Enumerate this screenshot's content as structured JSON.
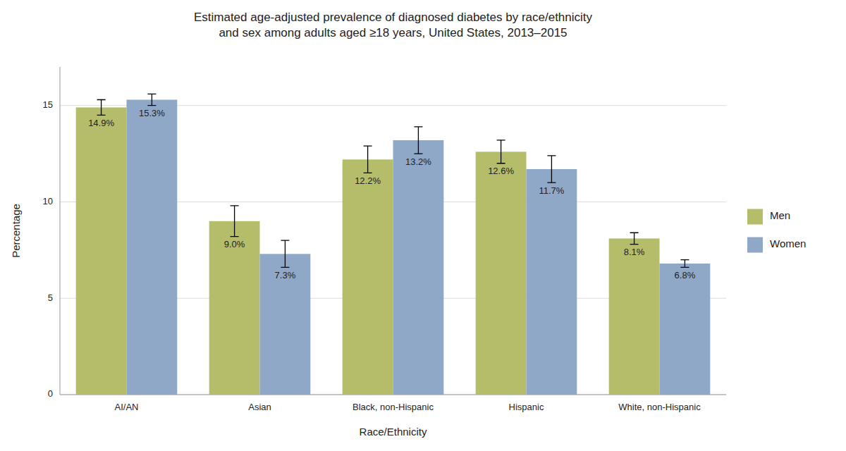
{
  "chart_data": {
    "type": "bar",
    "title": "Estimated age-adjusted prevalence of diagnosed diabetes by race/ethnicity\nand sex among adults aged ≥18 years, United States, 2013–2015",
    "xlabel": "Race/Ethnicity",
    "ylabel": "Percentage",
    "categories": [
      "AI/AN",
      "Asian",
      "Black, non-Hispanic",
      "Hispanic",
      "White, non-Hispanic"
    ],
    "series": [
      {
        "name": "Men",
        "color": "#b5bd6b",
        "values": [
          14.9,
          9.0,
          12.2,
          12.6,
          8.1
        ],
        "value_labels": [
          "14.9%",
          "9.0%",
          "12.2%",
          "12.6%",
          "8.1%"
        ],
        "errors_low": [
          0.4,
          0.8,
          0.7,
          0.6,
          0.3
        ],
        "errors_high": [
          0.4,
          0.8,
          0.7,
          0.6,
          0.3
        ]
      },
      {
        "name": "Women",
        "color": "#8fa8c8",
        "values": [
          15.3,
          7.3,
          13.2,
          11.7,
          6.8
        ],
        "value_labels": [
          "15.3%",
          "7.3%",
          "13.2%",
          "11.7%",
          "6.8%"
        ],
        "errors_low": [
          0.3,
          0.7,
          0.7,
          0.7,
          0.2
        ],
        "errors_high": [
          0.3,
          0.7,
          0.7,
          0.7,
          0.2
        ]
      }
    ],
    "ylim": [
      0,
      17
    ],
    "yticks": [
      0,
      5,
      10,
      15
    ],
    "grid": true,
    "legend": "right",
    "data_labels": true
  }
}
